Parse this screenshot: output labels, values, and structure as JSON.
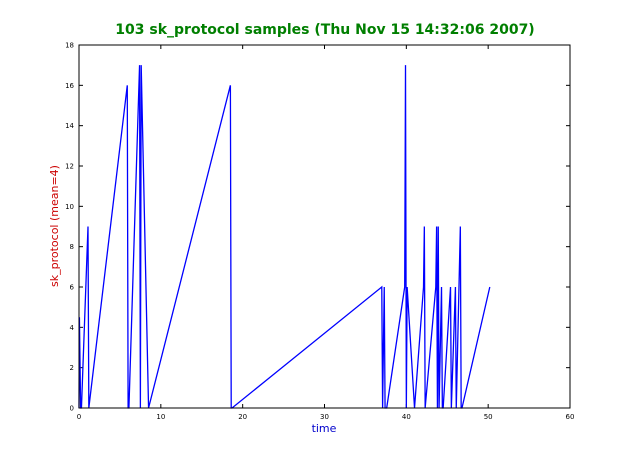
{
  "chart_data": {
    "type": "line",
    "title": "103 sk_protocol samples (Thu Nov 15 14:32:06 2007)",
    "xlabel": "time",
    "ylabel": "sk_protocol (mean=4)",
    "xlim": [
      0,
      60
    ],
    "ylim": [
      0,
      18
    ],
    "xticks": [
      "0",
      "10",
      "20",
      "30",
      "40",
      "50",
      "60"
    ],
    "yticks": [
      "0",
      "2",
      "4",
      "6",
      "8",
      "10",
      "12",
      "14",
      "16",
      "18"
    ],
    "grid": false,
    "series": [
      {
        "color": "#0000ff",
        "x": [
          0,
          0.05,
          0.2,
          0.3,
          1.1,
          1.2,
          5.9,
          6.0,
          6.1,
          7.4,
          7.5,
          7.6,
          8.5,
          18.5,
          18.6,
          18.7,
          37.0,
          37.1,
          37.3,
          37.4,
          37.6,
          39.8,
          39.9,
          40.0,
          40.1,
          41.0,
          42.1,
          42.2,
          42.3,
          43.6,
          43.7,
          43.8,
          43.9,
          44.0,
          44.3,
          44.4,
          44.5,
          45.4,
          45.5,
          46.0,
          46.1,
          46.6,
          46.7,
          46.8,
          50.2
        ],
        "y": [
          0,
          4.5,
          0,
          0,
          9,
          0,
          16,
          0,
          0,
          17,
          0,
          17,
          0,
          16,
          0,
          0,
          6,
          0,
          6,
          0,
          0,
          6,
          17,
          0,
          6,
          0,
          6,
          9,
          0,
          6,
          9,
          0,
          9,
          0,
          6,
          0,
          0,
          6,
          0,
          6,
          0,
          9,
          0,
          0,
          6
        ]
      }
    ]
  }
}
